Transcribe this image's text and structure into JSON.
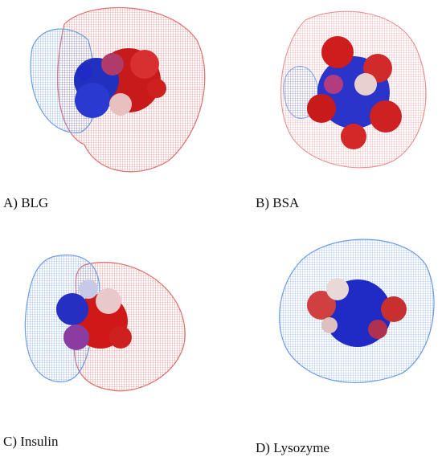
{
  "panels": [
    {
      "label": "A) BLG"
    },
    {
      "label": "B) BSA"
    },
    {
      "label": "C) Insulin"
    },
    {
      "label": "D) Lysozyme"
    }
  ],
  "colors": {
    "positive": "#e05050",
    "negative": "#4a7fd6",
    "atom_red": "#d01818",
    "atom_blue": "#1f2bc4",
    "atom_white": "#e8dede"
  }
}
